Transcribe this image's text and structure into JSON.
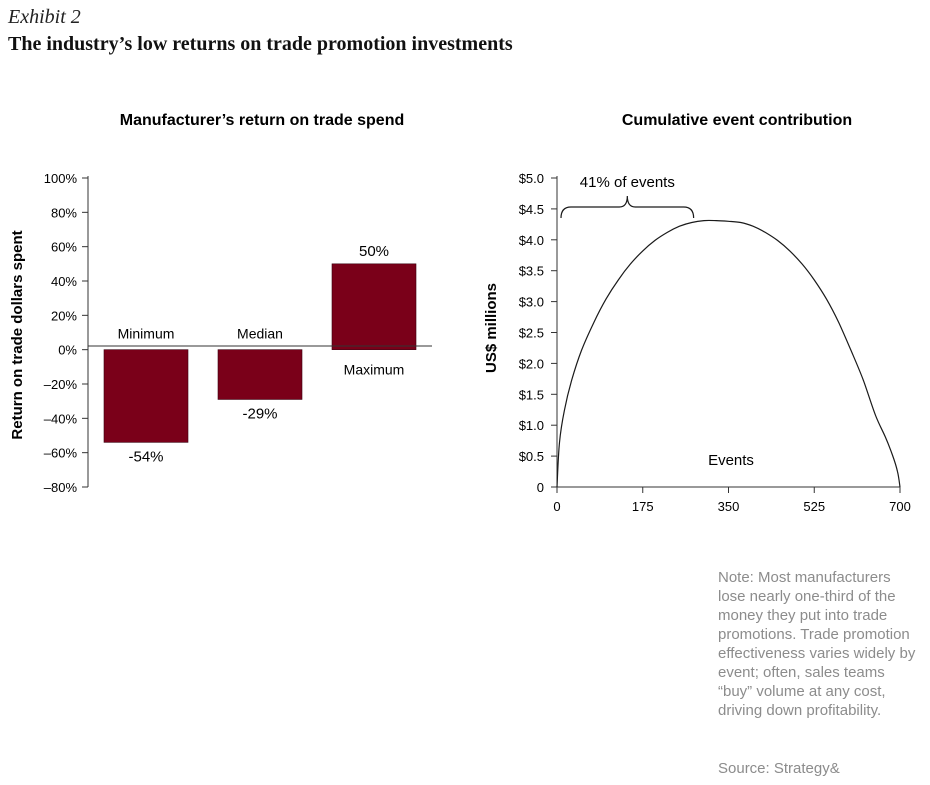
{
  "header": {
    "exhibit": "Exhibit 2",
    "title": "The industry’s low returns on trade promotion investments"
  },
  "colors": {
    "bar": "#7a0019",
    "axis": "#333333",
    "note": "#8c8c8c"
  },
  "chart_data": [
    {
      "type": "bar",
      "title": "Manufacturer’s return on trade spend",
      "xlabel": "",
      "ylabel": "Return on trade dollars spent",
      "ylim": [
        -80,
        100
      ],
      "yticks": [
        100,
        80,
        60,
        40,
        20,
        0,
        -20,
        -40,
        -60,
        -80
      ],
      "ytick_labels": [
        "100%",
        "80%",
        "60%",
        "40%",
        "20%",
        "0%",
        "–20%",
        "–40%",
        "–60%",
        "–80%"
      ],
      "categories": [
        "Minimum",
        "Median",
        "Maximum"
      ],
      "values": [
        -54,
        -29,
        50
      ],
      "value_labels": [
        "-54%",
        "-29%",
        "50%"
      ]
    },
    {
      "type": "line",
      "title": "Cumulative event contribution",
      "xlabel": "Events",
      "ylabel": "US$ millions",
      "xlim": [
        0,
        700
      ],
      "ylim": [
        0,
        5.0
      ],
      "xticks": [
        0,
        175,
        350,
        525,
        700
      ],
      "yticks": [
        0,
        0.5,
        1.0,
        1.5,
        2.0,
        2.5,
        3.0,
        3.5,
        4.0,
        4.5,
        5.0
      ],
      "ytick_labels": [
        "0",
        "$0.5",
        "$1.0",
        "$1.5",
        "$2.0",
        "$2.5",
        "$3.0",
        "$3.5",
        "$4.0",
        "$4.5",
        "$5.0"
      ],
      "series": [
        {
          "name": "Cumulative contribution",
          "x": [
            0,
            5,
            15,
            30,
            50,
            75,
            100,
            125,
            150,
            175,
            200,
            225,
            250,
            275,
            300,
            325,
            350,
            375,
            400,
            425,
            450,
            475,
            500,
            525,
            550,
            575,
            600,
            625,
            650,
            670,
            685,
            695,
            700
          ],
          "y": [
            0,
            0.72,
            1.24,
            1.73,
            2.21,
            2.66,
            3.04,
            3.35,
            3.61,
            3.82,
            3.99,
            4.12,
            4.22,
            4.28,
            4.31,
            4.31,
            4.3,
            4.28,
            4.22,
            4.12,
            3.99,
            3.82,
            3.61,
            3.35,
            3.04,
            2.66,
            2.21,
            1.73,
            1.16,
            0.81,
            0.51,
            0.25,
            0
          ]
        }
      ],
      "annotation": {
        "text": "41% of events",
        "x_start": 0,
        "x_end": 287
      }
    }
  ],
  "note": "Note: Most manufacturers lose nearly one-third of the money they put into trade promotions. Trade promotion effectiveness varies widely by event; often, sales teams “buy” volume at any cost, driving down profitability.",
  "source": "Source: Strategy&"
}
